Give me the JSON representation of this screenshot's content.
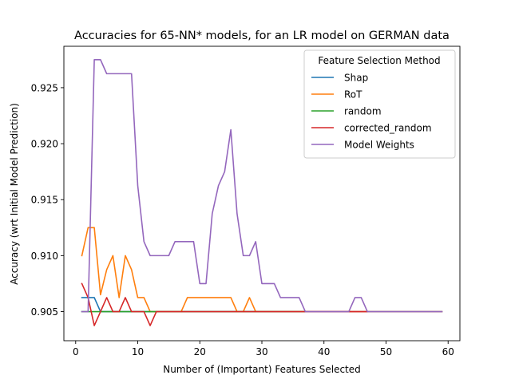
{
  "chart_data": {
    "type": "line",
    "title": "Accuracies for 65-NN* models, for an LR model on GERMAN data",
    "xlabel": "Number of (Important) Features Selected",
    "ylabel": "Accuracy (wrt Initial Model Prediction)",
    "xlim": [
      -1.9,
      61.9
    ],
    "ylim": [
      0.9024,
      0.9287
    ],
    "xticks": [
      0,
      10,
      20,
      30,
      40,
      50,
      60
    ],
    "yticks": [
      0.905,
      0.91,
      0.915,
      0.92,
      0.925
    ],
    "ytick_labels": [
      "0.905",
      "0.910",
      "0.915",
      "0.920",
      "0.925"
    ],
    "grid": false,
    "legend": {
      "title": "Feature Selection Method",
      "placement": "top-right"
    },
    "series": [
      {
        "name": "Shap",
        "color": "#1f77b4",
        "x": [
          1,
          2,
          3,
          4,
          5,
          6,
          7,
          8,
          9,
          10,
          11,
          12,
          13,
          14,
          15,
          16,
          17,
          18,
          19,
          20,
          21,
          22,
          23,
          24,
          25,
          26,
          27,
          28,
          29,
          30,
          31,
          32,
          33,
          34,
          35,
          36,
          37,
          38,
          39,
          40,
          41,
          42,
          43,
          44,
          45,
          46,
          47,
          48,
          49,
          50,
          51,
          52,
          53,
          54,
          55,
          56,
          57,
          58,
          59
        ],
        "y": [
          0.90625,
          0.90625,
          0.90625,
          0.905,
          0.905,
          0.905,
          0.905,
          0.905,
          0.905,
          0.905,
          0.905,
          0.905,
          0.905,
          0.905,
          0.905,
          0.905,
          0.905,
          0.905,
          0.905,
          0.905,
          0.905,
          0.905,
          0.905,
          0.905,
          0.905,
          0.905,
          0.905,
          0.905,
          0.905,
          0.905,
          0.905,
          0.905,
          0.905,
          0.905,
          0.905,
          0.905,
          0.905,
          0.905,
          0.905,
          0.905,
          0.905,
          0.905,
          0.905,
          0.905,
          0.905,
          0.905,
          0.905,
          0.905,
          0.905,
          0.905,
          0.905,
          0.905,
          0.905,
          0.905,
          0.905,
          0.905,
          0.905,
          0.905,
          0.905
        ]
      },
      {
        "name": "RoT",
        "color": "#ff7f0e",
        "x": [
          1,
          2,
          3,
          4,
          5,
          6,
          7,
          8,
          9,
          10,
          11,
          12,
          13,
          14,
          15,
          16,
          17,
          18,
          19,
          20,
          21,
          22,
          23,
          24,
          25,
          26,
          27,
          28,
          29,
          30,
          31,
          32,
          33,
          34,
          35,
          36,
          37,
          38,
          39,
          40,
          41,
          42,
          43,
          44,
          45,
          46,
          47,
          48,
          49,
          50,
          51,
          52,
          53,
          54,
          55,
          56,
          57,
          58,
          59
        ],
        "y": [
          0.91,
          0.9125,
          0.9125,
          0.9065,
          0.90875,
          0.91,
          0.90625,
          0.91,
          0.90875,
          0.90625,
          0.90625,
          0.905,
          0.905,
          0.905,
          0.905,
          0.905,
          0.905,
          0.90625,
          0.90625,
          0.90625,
          0.90625,
          0.90625,
          0.90625,
          0.90625,
          0.90625,
          0.905,
          0.905,
          0.90625,
          0.905,
          0.905,
          0.905,
          0.905,
          0.905,
          0.905,
          0.905,
          0.905,
          0.905,
          0.905,
          0.905,
          0.905,
          0.905,
          0.905,
          0.905,
          0.905,
          0.905,
          0.905,
          0.905,
          0.905,
          0.905,
          0.905,
          0.905,
          0.905,
          0.905,
          0.905,
          0.905,
          0.905,
          0.905,
          0.905,
          0.905
        ]
      },
      {
        "name": "random",
        "color": "#2ca02c",
        "x": [
          1,
          2,
          3,
          4,
          5,
          6,
          7,
          8,
          9,
          10,
          11,
          12,
          13,
          14,
          15,
          16,
          17,
          18,
          19,
          20,
          21,
          22,
          23,
          24,
          25,
          26,
          27,
          28,
          29,
          30,
          31,
          32,
          33,
          34,
          35,
          36,
          37
        ],
        "y": [
          0.905,
          0.905,
          0.905,
          0.905,
          0.905,
          0.905,
          0.905,
          0.905,
          0.905,
          0.905,
          0.905,
          0.905,
          0.905,
          0.905,
          0.905,
          0.905,
          0.905,
          0.905,
          0.905,
          0.905,
          0.905,
          0.905,
          0.905,
          0.905,
          0.905,
          0.905,
          0.905,
          0.905,
          0.905,
          0.905,
          0.905,
          0.905,
          0.905,
          0.905,
          0.905,
          0.905,
          0.905
        ]
      },
      {
        "name": "corrected_random",
        "color": "#d62728",
        "x": [
          1,
          2,
          3,
          4,
          5,
          6,
          7,
          8,
          9,
          10,
          11,
          12,
          13,
          14,
          15,
          16,
          17,
          18,
          19,
          20,
          21,
          22,
          23,
          24,
          25,
          26,
          27,
          28,
          29,
          30,
          31,
          32,
          33,
          34,
          35,
          36,
          37,
          38,
          39,
          40,
          41,
          42,
          43,
          44,
          45,
          46,
          47
        ],
        "y": [
          0.9075,
          0.90625,
          0.90375,
          0.905,
          0.90625,
          0.905,
          0.905,
          0.90625,
          0.905,
          0.905,
          0.905,
          0.90375,
          0.905,
          0.905,
          0.905,
          0.905,
          0.905,
          0.905,
          0.905,
          0.905,
          0.905,
          0.905,
          0.905,
          0.905,
          0.905,
          0.905,
          0.905,
          0.905,
          0.905,
          0.905,
          0.905,
          0.905,
          0.905,
          0.905,
          0.905,
          0.905,
          0.905,
          0.905,
          0.905,
          0.905,
          0.905,
          0.905,
          0.905,
          0.905,
          0.905,
          0.905,
          0.905
        ]
      },
      {
        "name": "Model Weights",
        "color": "#9467bd",
        "x": [
          1,
          2,
          3,
          4,
          5,
          6,
          7,
          8,
          9,
          10,
          11,
          12,
          13,
          14,
          15,
          16,
          17,
          18,
          19,
          20,
          21,
          22,
          23,
          24,
          25,
          26,
          27,
          28,
          29,
          30,
          31,
          32,
          33,
          34,
          35,
          36,
          37,
          38,
          39,
          40,
          41,
          42,
          43,
          44,
          45,
          46,
          47,
          48,
          49,
          50,
          51,
          52,
          53,
          54,
          55,
          56,
          57,
          58,
          59
        ],
        "y": [
          0.905,
          0.905,
          0.9275,
          0.9275,
          0.92625,
          0.92625,
          0.92625,
          0.92625,
          0.92625,
          0.91625,
          0.91125,
          0.91,
          0.91,
          0.91,
          0.91,
          0.91125,
          0.91125,
          0.91125,
          0.91125,
          0.9075,
          0.9075,
          0.91375,
          0.91625,
          0.9175,
          0.92125,
          0.91375,
          0.91,
          0.91,
          0.91125,
          0.9075,
          0.9075,
          0.9075,
          0.90625,
          0.90625,
          0.90625,
          0.90625,
          0.905,
          0.905,
          0.905,
          0.905,
          0.905,
          0.905,
          0.905,
          0.905,
          0.90625,
          0.90625,
          0.905,
          0.905,
          0.905,
          0.905,
          0.905,
          0.905,
          0.905,
          0.905,
          0.905,
          0.905,
          0.905,
          0.905,
          0.905
        ]
      }
    ]
  }
}
